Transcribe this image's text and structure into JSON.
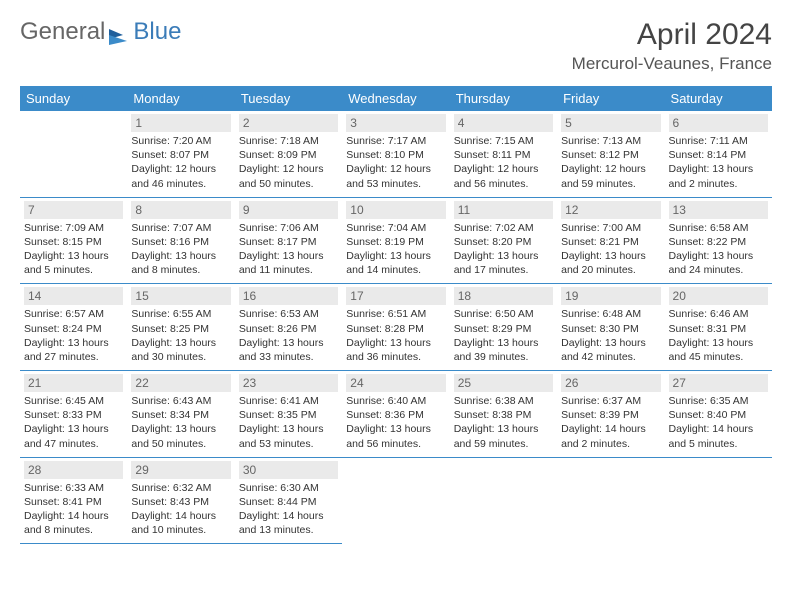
{
  "brand": {
    "part1": "General",
    "part2": "Blue"
  },
  "title": "April 2024",
  "location": "Mercurol-Veaunes, France",
  "colors": {
    "header_bg": "#3b8bc9",
    "header_text": "#ffffff",
    "daynum_bg": "#eaeaea",
    "border": "#3b8bc9",
    "brand_blue": "#3b7cb8",
    "text": "#333333"
  },
  "weekdays": [
    "Sunday",
    "Monday",
    "Tuesday",
    "Wednesday",
    "Thursday",
    "Friday",
    "Saturday"
  ],
  "first_weekday_index": 1,
  "days": [
    {
      "n": 1,
      "sr": "7:20 AM",
      "ss": "8:07 PM",
      "dl": "12 hours and 46 minutes."
    },
    {
      "n": 2,
      "sr": "7:18 AM",
      "ss": "8:09 PM",
      "dl": "12 hours and 50 minutes."
    },
    {
      "n": 3,
      "sr": "7:17 AM",
      "ss": "8:10 PM",
      "dl": "12 hours and 53 minutes."
    },
    {
      "n": 4,
      "sr": "7:15 AM",
      "ss": "8:11 PM",
      "dl": "12 hours and 56 minutes."
    },
    {
      "n": 5,
      "sr": "7:13 AM",
      "ss": "8:12 PM",
      "dl": "12 hours and 59 minutes."
    },
    {
      "n": 6,
      "sr": "7:11 AM",
      "ss": "8:14 PM",
      "dl": "13 hours and 2 minutes."
    },
    {
      "n": 7,
      "sr": "7:09 AM",
      "ss": "8:15 PM",
      "dl": "13 hours and 5 minutes."
    },
    {
      "n": 8,
      "sr": "7:07 AM",
      "ss": "8:16 PM",
      "dl": "13 hours and 8 minutes."
    },
    {
      "n": 9,
      "sr": "7:06 AM",
      "ss": "8:17 PM",
      "dl": "13 hours and 11 minutes."
    },
    {
      "n": 10,
      "sr": "7:04 AM",
      "ss": "8:19 PM",
      "dl": "13 hours and 14 minutes."
    },
    {
      "n": 11,
      "sr": "7:02 AM",
      "ss": "8:20 PM",
      "dl": "13 hours and 17 minutes."
    },
    {
      "n": 12,
      "sr": "7:00 AM",
      "ss": "8:21 PM",
      "dl": "13 hours and 20 minutes."
    },
    {
      "n": 13,
      "sr": "6:58 AM",
      "ss": "8:22 PM",
      "dl": "13 hours and 24 minutes."
    },
    {
      "n": 14,
      "sr": "6:57 AM",
      "ss": "8:24 PM",
      "dl": "13 hours and 27 minutes."
    },
    {
      "n": 15,
      "sr": "6:55 AM",
      "ss": "8:25 PM",
      "dl": "13 hours and 30 minutes."
    },
    {
      "n": 16,
      "sr": "6:53 AM",
      "ss": "8:26 PM",
      "dl": "13 hours and 33 minutes."
    },
    {
      "n": 17,
      "sr": "6:51 AM",
      "ss": "8:28 PM",
      "dl": "13 hours and 36 minutes."
    },
    {
      "n": 18,
      "sr": "6:50 AM",
      "ss": "8:29 PM",
      "dl": "13 hours and 39 minutes."
    },
    {
      "n": 19,
      "sr": "6:48 AM",
      "ss": "8:30 PM",
      "dl": "13 hours and 42 minutes."
    },
    {
      "n": 20,
      "sr": "6:46 AM",
      "ss": "8:31 PM",
      "dl": "13 hours and 45 minutes."
    },
    {
      "n": 21,
      "sr": "6:45 AM",
      "ss": "8:33 PM",
      "dl": "13 hours and 47 minutes."
    },
    {
      "n": 22,
      "sr": "6:43 AM",
      "ss": "8:34 PM",
      "dl": "13 hours and 50 minutes."
    },
    {
      "n": 23,
      "sr": "6:41 AM",
      "ss": "8:35 PM",
      "dl": "13 hours and 53 minutes."
    },
    {
      "n": 24,
      "sr": "6:40 AM",
      "ss": "8:36 PM",
      "dl": "13 hours and 56 minutes."
    },
    {
      "n": 25,
      "sr": "6:38 AM",
      "ss": "8:38 PM",
      "dl": "13 hours and 59 minutes."
    },
    {
      "n": 26,
      "sr": "6:37 AM",
      "ss": "8:39 PM",
      "dl": "14 hours and 2 minutes."
    },
    {
      "n": 27,
      "sr": "6:35 AM",
      "ss": "8:40 PM",
      "dl": "14 hours and 5 minutes."
    },
    {
      "n": 28,
      "sr": "6:33 AM",
      "ss": "8:41 PM",
      "dl": "14 hours and 8 minutes."
    },
    {
      "n": 29,
      "sr": "6:32 AM",
      "ss": "8:43 PM",
      "dl": "14 hours and 10 minutes."
    },
    {
      "n": 30,
      "sr": "6:30 AM",
      "ss": "8:44 PM",
      "dl": "14 hours and 13 minutes."
    }
  ],
  "labels": {
    "sunrise": "Sunrise:",
    "sunset": "Sunset:",
    "daylight": "Daylight:"
  }
}
